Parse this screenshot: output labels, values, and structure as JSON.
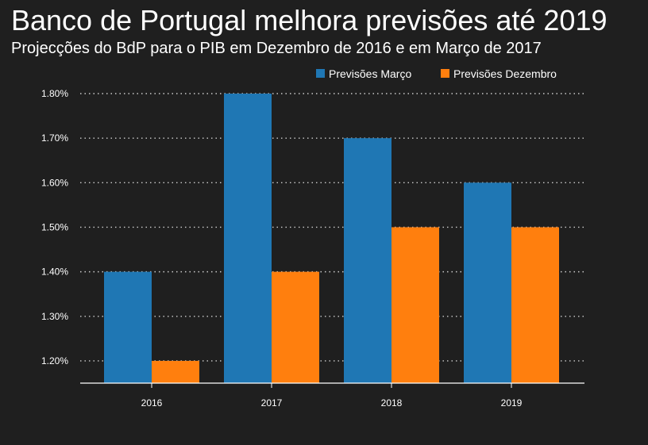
{
  "header": {
    "title": "Banco de Portugal melhora previsões até 2019",
    "subtitle": "Projecções do BdP para o PIB em Dezembro de 2016 e em Março de 2017"
  },
  "colors": {
    "background": "#1f1f1f",
    "marco": "#1f77b4",
    "dezembro": "#ff7f0e",
    "grid": "#cccccc",
    "axis": "#ffffff"
  },
  "chart_data": {
    "type": "bar",
    "title": "Banco de Portugal melhora previsões até 2019",
    "subtitle": "Projecções do BdP para o PIB em Dezembro de 2016 e em Março de 2017",
    "xlabel": "",
    "ylabel": "",
    "categories": [
      "2016",
      "2017",
      "2018",
      "2019"
    ],
    "series": [
      {
        "name": "Previsões Março",
        "values": [
          1.4,
          1.8,
          1.7,
          1.6
        ]
      },
      {
        "name": "Previsões Dezembro",
        "values": [
          1.2,
          1.4,
          1.5,
          1.5
        ]
      }
    ],
    "ylim": [
      1.15,
      1.8
    ],
    "yticks": [
      1.2,
      1.3,
      1.4,
      1.5,
      1.6,
      1.7,
      1.8
    ],
    "ytick_labels": [
      "1.20%",
      "1.30%",
      "1.40%",
      "1.50%",
      "1.60%",
      "1.70%",
      "1.80%"
    ],
    "grid": "horizontal dotted",
    "legend_position": "top-right"
  }
}
